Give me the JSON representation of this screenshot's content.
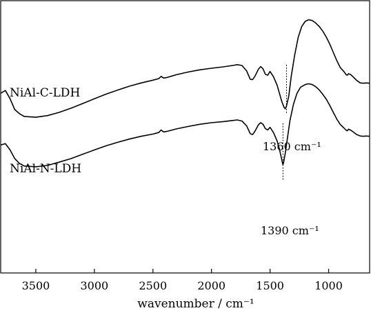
{
  "chart_data": {
    "type": "line",
    "title": "",
    "xlabel": "wavenumber / cm⁻¹",
    "ylabel": "",
    "xlim": [
      3800,
      650
    ],
    "x_reversed": true,
    "grid": false,
    "legend": "none",
    "x_ticks": [
      3500,
      3000,
      2500,
      2000,
      1500,
      1000
    ],
    "x_tick_labels": [
      "3500",
      "3000",
      "2500",
      "2000",
      "1500",
      "1000"
    ],
    "series": [
      {
        "name": "NiAl-C-LDH",
        "color": "#000000",
        "points": [
          [
            3800,
            0.66
          ],
          [
            3760,
            0.67
          ],
          [
            3720,
            0.64
          ],
          [
            3680,
            0.6
          ],
          [
            3640,
            0.585
          ],
          [
            3600,
            0.575
          ],
          [
            3500,
            0.572
          ],
          [
            3400,
            0.578
          ],
          [
            3300,
            0.59
          ],
          [
            3200,
            0.605
          ],
          [
            3100,
            0.622
          ],
          [
            3000,
            0.64
          ],
          [
            2900,
            0.657
          ],
          [
            2800,
            0.672
          ],
          [
            2700,
            0.686
          ],
          [
            2600,
            0.698
          ],
          [
            2500,
            0.708
          ],
          [
            2450,
            0.714
          ],
          [
            2430,
            0.722
          ],
          [
            2410,
            0.716
          ],
          [
            2380,
            0.718
          ],
          [
            2300,
            0.728
          ],
          [
            2200,
            0.738
          ],
          [
            2100,
            0.746
          ],
          [
            2000,
            0.752
          ],
          [
            1900,
            0.757
          ],
          [
            1820,
            0.762
          ],
          [
            1780,
            0.765
          ],
          [
            1740,
            0.762
          ],
          [
            1700,
            0.742
          ],
          [
            1670,
            0.712
          ],
          [
            1650,
            0.71
          ],
          [
            1630,
            0.722
          ],
          [
            1600,
            0.748
          ],
          [
            1580,
            0.758
          ],
          [
            1560,
            0.75
          ],
          [
            1540,
            0.73
          ],
          [
            1520,
            0.726
          ],
          [
            1500,
            0.74
          ],
          [
            1470,
            0.72
          ],
          [
            1440,
            0.69
          ],
          [
            1420,
            0.66
          ],
          [
            1400,
            0.63
          ],
          [
            1380,
            0.608
          ],
          [
            1370,
            0.603
          ],
          [
            1360,
            0.613
          ],
          [
            1340,
            0.65
          ],
          [
            1320,
            0.72
          ],
          [
            1290,
            0.8
          ],
          [
            1260,
            0.865
          ],
          [
            1230,
            0.905
          ],
          [
            1200,
            0.924
          ],
          [
            1170,
            0.93
          ],
          [
            1140,
            0.927
          ],
          [
            1110,
            0.918
          ],
          [
            1080,
            0.905
          ],
          [
            1050,
            0.888
          ],
          [
            1020,
            0.866
          ],
          [
            990,
            0.84
          ],
          [
            960,
            0.81
          ],
          [
            930,
            0.78
          ],
          [
            900,
            0.754
          ],
          [
            870,
            0.74
          ],
          [
            850,
            0.728
          ],
          [
            840,
            0.726
          ],
          [
            830,
            0.732
          ],
          [
            810,
            0.728
          ],
          [
            790,
            0.72
          ],
          [
            760,
            0.707
          ],
          [
            730,
            0.698
          ],
          [
            700,
            0.697
          ],
          [
            680,
            0.698
          ],
          [
            650,
            0.697
          ]
        ]
      },
      {
        "name": "NiAl-N-LDH",
        "color": "#000000",
        "points": [
          [
            3800,
            0.47
          ],
          [
            3760,
            0.475
          ],
          [
            3720,
            0.452
          ],
          [
            3680,
            0.42
          ],
          [
            3640,
            0.402
          ],
          [
            3600,
            0.393
          ],
          [
            3500,
            0.39
          ],
          [
            3400,
            0.395
          ],
          [
            3300,
            0.407
          ],
          [
            3200,
            0.42
          ],
          [
            3100,
            0.436
          ],
          [
            3000,
            0.452
          ],
          [
            2900,
            0.467
          ],
          [
            2800,
            0.48
          ],
          [
            2700,
            0.492
          ],
          [
            2600,
            0.502
          ],
          [
            2500,
            0.51
          ],
          [
            2450,
            0.516
          ],
          [
            2430,
            0.525
          ],
          [
            2410,
            0.518
          ],
          [
            2380,
            0.52
          ],
          [
            2300,
            0.529
          ],
          [
            2200,
            0.538
          ],
          [
            2100,
            0.546
          ],
          [
            2000,
            0.552
          ],
          [
            1900,
            0.556
          ],
          [
            1820,
            0.56
          ],
          [
            1780,
            0.562
          ],
          [
            1740,
            0.558
          ],
          [
            1700,
            0.54
          ],
          [
            1670,
            0.512
          ],
          [
            1650,
            0.508
          ],
          [
            1630,
            0.52
          ],
          [
            1600,
            0.544
          ],
          [
            1580,
            0.552
          ],
          [
            1560,
            0.546
          ],
          [
            1540,
            0.53
          ],
          [
            1520,
            0.525
          ],
          [
            1500,
            0.535
          ],
          [
            1470,
            0.515
          ],
          [
            1440,
            0.485
          ],
          [
            1420,
            0.455
          ],
          [
            1405,
            0.425
          ],
          [
            1395,
            0.405
          ],
          [
            1390,
            0.398
          ],
          [
            1385,
            0.405
          ],
          [
            1370,
            0.44
          ],
          [
            1350,
            0.5
          ],
          [
            1330,
            0.56
          ],
          [
            1300,
            0.62
          ],
          [
            1270,
            0.66
          ],
          [
            1240,
            0.682
          ],
          [
            1200,
            0.692
          ],
          [
            1170,
            0.695
          ],
          [
            1140,
            0.692
          ],
          [
            1110,
            0.684
          ],
          [
            1080,
            0.672
          ],
          [
            1050,
            0.656
          ],
          [
            1020,
            0.638
          ],
          [
            990,
            0.615
          ],
          [
            960,
            0.59
          ],
          [
            930,
            0.565
          ],
          [
            900,
            0.545
          ],
          [
            870,
            0.533
          ],
          [
            850,
            0.524
          ],
          [
            840,
            0.522
          ],
          [
            830,
            0.528
          ],
          [
            810,
            0.524
          ],
          [
            790,
            0.518
          ],
          [
            760,
            0.508
          ],
          [
            730,
            0.503
          ],
          [
            700,
            0.502
          ],
          [
            680,
            0.503
          ],
          [
            650,
            0.502
          ]
        ]
      }
    ],
    "annotations": [
      {
        "text": "1360 cm⁻¹",
        "x": 1360,
        "series": 0
      },
      {
        "text": "1390 cm⁻¹",
        "x": 1390,
        "series": 1
      }
    ]
  }
}
